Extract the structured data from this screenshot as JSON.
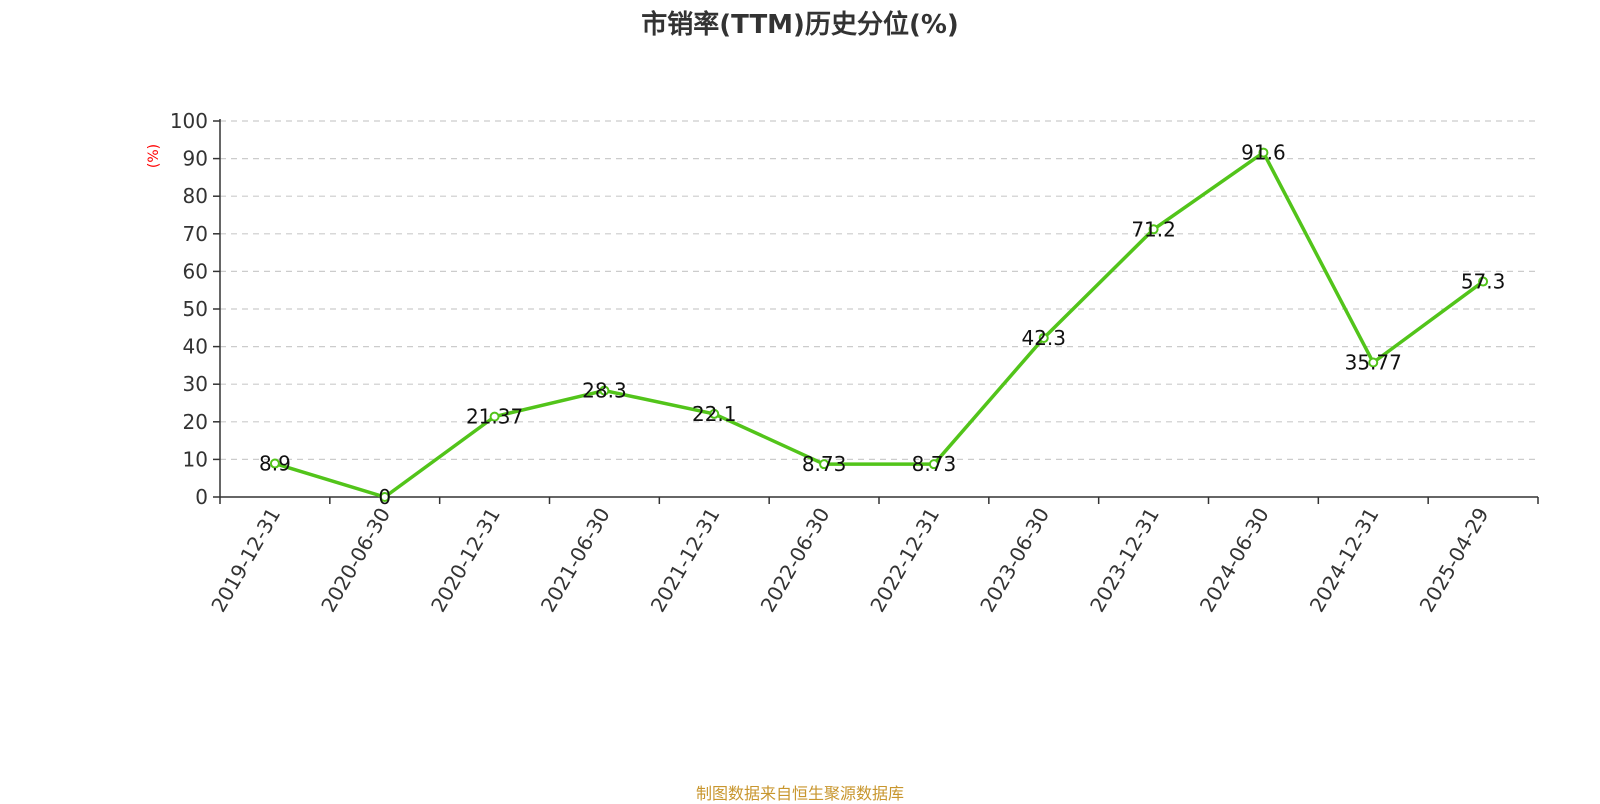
{
  "source_note": "制图数据来自恒生聚源数据库",
  "colors": {
    "line": "#52c41a",
    "unit": "#ff0000",
    "source": "#c8962e",
    "grid": "#cccccc",
    "axis": "#333333"
  },
  "chart_data": {
    "type": "line",
    "title": "市销率(TTM)历史分位(%)",
    "ylabel": "(%)",
    "xlabel": "",
    "ylim": [
      0,
      100
    ],
    "yticks": [
      0,
      10,
      20,
      30,
      40,
      50,
      60,
      70,
      80,
      90,
      100
    ],
    "grid": true,
    "categories": [
      "2019-12-31",
      "2020-06-30",
      "2020-12-31",
      "2021-06-30",
      "2021-12-31",
      "2022-06-30",
      "2022-12-31",
      "2023-06-30",
      "2023-12-31",
      "2024-06-30",
      "2024-12-31",
      "2025-04-29"
    ],
    "series": [
      {
        "values": [
          8.9,
          0,
          21.37,
          28.3,
          22.1,
          8.73,
          8.73,
          42.3,
          71.2,
          91.6,
          35.77,
          57.3
        ],
        "labels": [
          "8.9",
          "0",
          "21.37",
          "28.3",
          "22.1",
          "8.73",
          "8.73",
          "42.3",
          "71.2",
          "91.6",
          "35.77",
          "57.3"
        ]
      }
    ]
  }
}
